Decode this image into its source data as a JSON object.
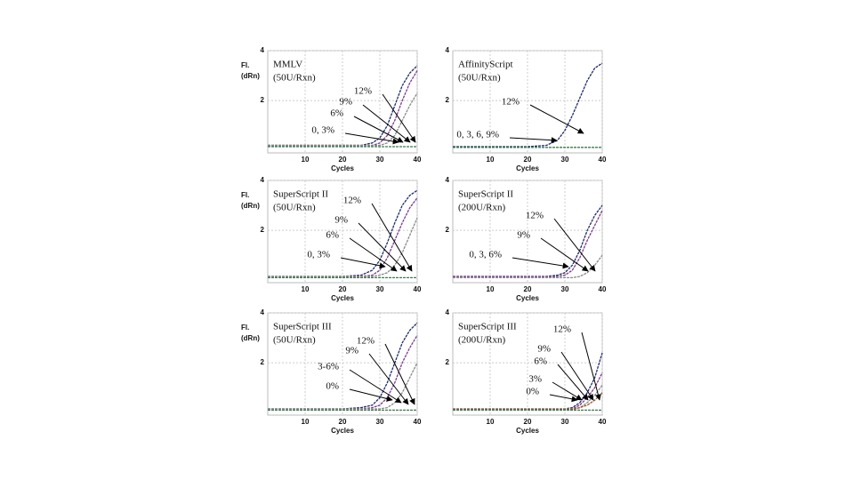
{
  "chart_data": [
    {
      "type": "line",
      "title": "MMLV",
      "subtitle": "(50U/Rxn)",
      "ylabel": [
        "Fl.",
        "(dRn)"
      ],
      "xlabel": "Cycles",
      "x": [
        0,
        10,
        20,
        25,
        28,
        30,
        32,
        34,
        36,
        38,
        40
      ],
      "xlim": [
        0,
        40
      ],
      "ylim": [
        -0.1,
        4
      ],
      "xticks": [
        10,
        20,
        30,
        40
      ],
      "yticks": [
        2,
        4
      ],
      "grid": true,
      "series": [
        {
          "name": "12%",
          "color": "#1f2a6b",
          "values": [
            0.2,
            0.2,
            0.2,
            0.2,
            0.3,
            0.5,
            1.0,
            1.8,
            2.6,
            3.1,
            3.4
          ]
        },
        {
          "name": "9%",
          "color": "#7b3b8c",
          "values": [
            0.2,
            0.2,
            0.2,
            0.2,
            0.2,
            0.3,
            0.6,
            1.2,
            2.0,
            2.7,
            3.2
          ]
        },
        {
          "name": "6%",
          "color": "#8a8a8a",
          "values": [
            0.2,
            0.2,
            0.2,
            0.2,
            0.2,
            0.2,
            0.3,
            0.6,
            1.2,
            1.8,
            2.3
          ]
        },
        {
          "name": "0, 3%",
          "color": "#3c7a4a",
          "values": [
            0.15,
            0.15,
            0.15,
            0.15,
            0.15,
            0.15,
            0.15,
            0.15,
            0.15,
            0.15,
            0.15
          ]
        }
      ]
    },
    {
      "type": "line",
      "title": "AffinityScript",
      "subtitle": "(50U/Rxn)",
      "xlabel": "Cycles",
      "x": [
        0,
        10,
        20,
        25,
        28,
        30,
        32,
        34,
        36,
        38,
        40
      ],
      "xlim": [
        0,
        40
      ],
      "ylim": [
        -0.1,
        4
      ],
      "xticks": [
        10,
        20,
        30,
        40
      ],
      "yticks": [
        2,
        4
      ],
      "grid": true,
      "series": [
        {
          "name": "12%",
          "color": "#1f2a6b",
          "values": [
            0.15,
            0.15,
            0.15,
            0.2,
            0.4,
            0.8,
            1.4,
            2.1,
            2.8,
            3.3,
            3.5
          ]
        },
        {
          "name": "0, 3, 6, 9%",
          "color": "#3c7a4a",
          "values": [
            0.12,
            0.12,
            0.12,
            0.12,
            0.12,
            0.12,
            0.12,
            0.12,
            0.12,
            0.12,
            0.12
          ]
        }
      ]
    },
    {
      "type": "line",
      "title": "SuperScript II",
      "subtitle": "(50U/Rxn)",
      "ylabel": [
        "Fl.",
        "(dRn)"
      ],
      "xlabel": "Cycles",
      "x": [
        0,
        10,
        20,
        25,
        28,
        30,
        32,
        34,
        36,
        38,
        40
      ],
      "xlim": [
        0,
        40
      ],
      "ylim": [
        -0.1,
        4
      ],
      "xticks": [
        10,
        20,
        30,
        40
      ],
      "yticks": [
        2,
        4
      ],
      "grid": true,
      "series": [
        {
          "name": "12%",
          "color": "#1f2a6b",
          "values": [
            0.15,
            0.15,
            0.15,
            0.2,
            0.4,
            0.8,
            1.5,
            2.3,
            3.0,
            3.4,
            3.6
          ]
        },
        {
          "name": "9%",
          "color": "#7b3b8c",
          "values": [
            0.15,
            0.15,
            0.15,
            0.15,
            0.2,
            0.4,
            0.9,
            1.6,
            2.3,
            2.9,
            3.3
          ]
        },
        {
          "name": "6%",
          "color": "#8a8a8a",
          "values": [
            0.15,
            0.15,
            0.15,
            0.15,
            0.15,
            0.2,
            0.3,
            0.6,
            1.1,
            1.8,
            2.5
          ]
        },
        {
          "name": "0, 3%",
          "color": "#3c7a4a",
          "values": [
            0.1,
            0.1,
            0.1,
            0.1,
            0.1,
            0.1,
            0.1,
            0.1,
            0.1,
            0.1,
            0.1
          ]
        }
      ]
    },
    {
      "type": "line",
      "title": "SuperScript II",
      "subtitle": "(200U/Rxn)",
      "xlabel": "Cycles",
      "x": [
        0,
        10,
        20,
        25,
        28,
        30,
        32,
        34,
        36,
        38,
        40
      ],
      "xlim": [
        0,
        40
      ],
      "ylim": [
        -0.1,
        4
      ],
      "xticks": [
        10,
        20,
        30,
        40
      ],
      "yticks": [
        2,
        4
      ],
      "grid": true,
      "series": [
        {
          "name": "12%",
          "color": "#1f2a6b",
          "values": [
            0.15,
            0.15,
            0.15,
            0.15,
            0.2,
            0.3,
            0.6,
            1.2,
            2.0,
            2.6,
            3.0
          ]
        },
        {
          "name": "9%",
          "color": "#7b3b8c",
          "values": [
            0.15,
            0.15,
            0.15,
            0.15,
            0.15,
            0.2,
            0.4,
            0.9,
            1.6,
            2.2,
            2.8
          ]
        },
        {
          "name": "0, 3, 6%",
          "color": "#8a8a8a",
          "values": [
            0.1,
            0.1,
            0.1,
            0.1,
            0.1,
            0.1,
            0.1,
            0.15,
            0.3,
            0.6,
            1.0
          ]
        }
      ]
    },
    {
      "type": "line",
      "title": "SuperScript III",
      "subtitle": "(50U/Rxn)",
      "ylabel": [
        "Fl.",
        "(dRn)"
      ],
      "xlabel": "Cycles",
      "x": [
        0,
        10,
        20,
        25,
        28,
        30,
        32,
        34,
        36,
        38,
        40
      ],
      "xlim": [
        0,
        40
      ],
      "ylim": [
        -0.1,
        4
      ],
      "xticks": [
        10,
        20,
        30,
        40
      ],
      "yticks": [
        2,
        4
      ],
      "grid": true,
      "series": [
        {
          "name": "12%",
          "color": "#1f2a6b",
          "values": [
            0.15,
            0.15,
            0.15,
            0.2,
            0.3,
            0.6,
            1.2,
            2.0,
            2.8,
            3.3,
            3.6
          ]
        },
        {
          "name": "9%",
          "color": "#7b3b8c",
          "values": [
            0.15,
            0.15,
            0.15,
            0.15,
            0.2,
            0.3,
            0.6,
            1.2,
            2.0,
            2.6,
            3.1
          ]
        },
        {
          "name": "3-6%",
          "color": "#8a8a8a",
          "values": [
            0.15,
            0.15,
            0.15,
            0.15,
            0.15,
            0.15,
            0.2,
            0.4,
            0.8,
            1.4,
            2.0
          ]
        },
        {
          "name": "0%",
          "color": "#3c7a4a",
          "values": [
            0.1,
            0.1,
            0.1,
            0.1,
            0.1,
            0.1,
            0.1,
            0.1,
            0.1,
            0.1,
            0.1
          ]
        }
      ]
    },
    {
      "type": "line",
      "title": "SuperScript III",
      "subtitle": "(200U/Rxn)",
      "xlabel": "Cycles",
      "x": [
        0,
        10,
        20,
        25,
        28,
        30,
        32,
        34,
        36,
        38,
        40
      ],
      "xlim": [
        0,
        40
      ],
      "ylim": [
        -0.1,
        4
      ],
      "xticks": [
        10,
        20,
        30,
        40
      ],
      "yticks": [
        2,
        4
      ],
      "grid": true,
      "series": [
        {
          "name": "12%",
          "color": "#1f2a6b",
          "values": [
            0.15,
            0.15,
            0.15,
            0.15,
            0.15,
            0.15,
            0.2,
            0.4,
            0.8,
            1.4,
            2.4
          ]
        },
        {
          "name": "9%",
          "color": "#7b3b8c",
          "values": [
            0.15,
            0.15,
            0.15,
            0.15,
            0.15,
            0.15,
            0.15,
            0.3,
            0.6,
            1.0,
            1.6
          ]
        },
        {
          "name": "6%",
          "color": "#8a8a8a",
          "values": [
            0.15,
            0.15,
            0.15,
            0.15,
            0.15,
            0.15,
            0.15,
            0.2,
            0.4,
            0.7,
            1.1
          ]
        },
        {
          "name": "3%",
          "color": "#a0522d",
          "values": [
            0.12,
            0.12,
            0.12,
            0.12,
            0.12,
            0.12,
            0.12,
            0.2,
            0.3,
            0.5,
            0.8
          ]
        },
        {
          "name": "0%",
          "color": "#3c7a4a",
          "values": [
            0.1,
            0.1,
            0.1,
            0.1,
            0.1,
            0.1,
            0.1,
            0.1,
            0.1,
            0.1,
            0.1
          ]
        }
      ]
    }
  ]
}
